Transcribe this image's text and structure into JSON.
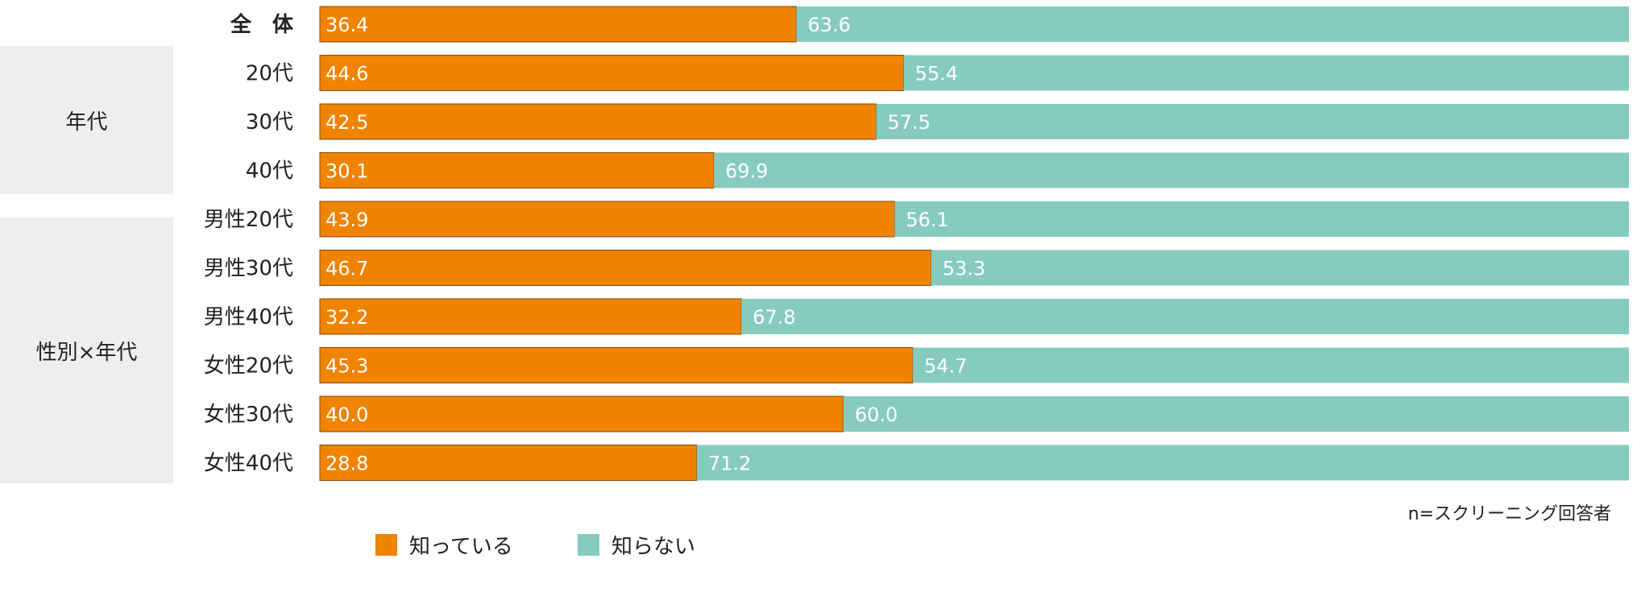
{
  "groups": {
    "age": "年代",
    "gender_age": "性別×年代"
  },
  "note": "n=スクリーニング回答者",
  "legend": [
    {
      "label": "知っている",
      "color": "#f08300"
    },
    {
      "label": "知らない",
      "color": "#87cbbf"
    }
  ],
  "chart_data": {
    "type": "bar",
    "orientation": "horizontal",
    "stacked": true,
    "percent": true,
    "categories": [
      "全　体",
      "20代",
      "30代",
      "40代",
      "男性20代",
      "男性30代",
      "男性40代",
      "女性20代",
      "女性30代",
      "女性40代"
    ],
    "series": [
      {
        "name": "知っている",
        "color": "#f08300",
        "values": [
          36.4,
          44.6,
          42.5,
          30.1,
          43.9,
          46.7,
          32.2,
          45.3,
          40.0,
          28.8
        ]
      },
      {
        "name": "知らない",
        "color": "#87cbbf",
        "values": [
          63.6,
          55.4,
          57.5,
          69.9,
          56.1,
          53.3,
          67.8,
          54.7,
          60.0,
          71.2
        ]
      }
    ],
    "xlim": [
      0,
      100
    ],
    "grid": false,
    "legend_position": "bottom"
  }
}
